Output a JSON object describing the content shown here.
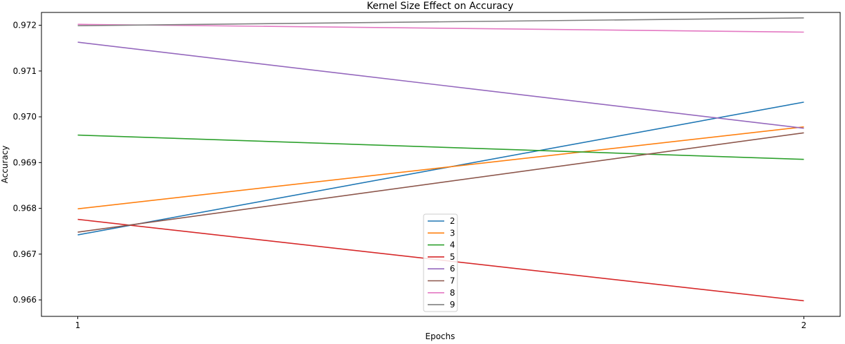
{
  "chart_data": {
    "type": "line",
    "title": "Kernel Size Effect on Accuracy",
    "xlabel": "Epochs",
    "ylabel": "Accuracy",
    "x": [
      1,
      2
    ],
    "x_ticks": [
      "1",
      "2"
    ],
    "y_ticks": [
      "0.966",
      "0.967",
      "0.968",
      "0.969",
      "0.970",
      "0.971",
      "0.972"
    ],
    "ylim": [
      0.96564,
      0.97228
    ],
    "grid": false,
    "legend_position": "lower center",
    "series": [
      {
        "name": "2",
        "color": "#1f77b4",
        "values": [
          0.96742,
          0.97032
        ]
      },
      {
        "name": "3",
        "color": "#ff7f0e",
        "values": [
          0.96799,
          0.96978
        ]
      },
      {
        "name": "4",
        "color": "#2ca02c",
        "values": [
          0.9696,
          0.96907
        ]
      },
      {
        "name": "5",
        "color": "#d62728",
        "values": [
          0.96776,
          0.96598
        ]
      },
      {
        "name": "6",
        "color": "#9467bd",
        "values": [
          0.97163,
          0.96975
        ]
      },
      {
        "name": "7",
        "color": "#8c564b",
        "values": [
          0.96748,
          0.96965
        ]
      },
      {
        "name": "8",
        "color": "#e377c2",
        "values": [
          0.97202,
          0.97185
        ]
      },
      {
        "name": "9",
        "color": "#7f7f7f",
        "values": [
          0.97199,
          0.97216
        ]
      }
    ]
  }
}
